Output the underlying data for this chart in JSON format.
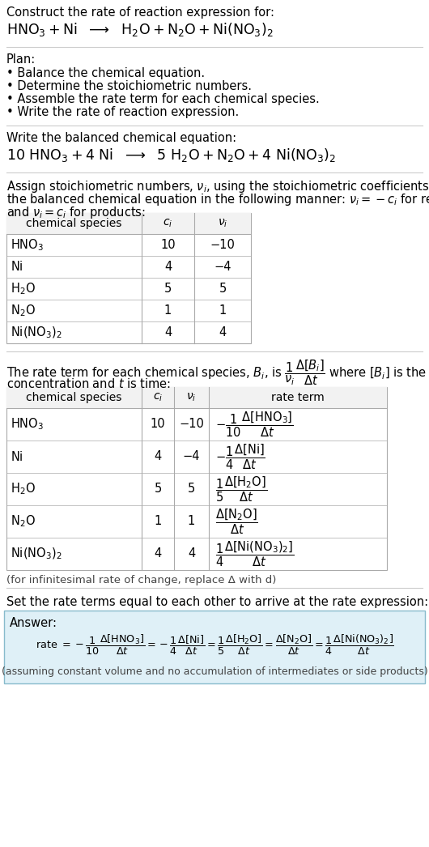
{
  "bg_color": "#ffffff",
  "light_blue_bg": "#dff0f7",
  "table_border": "#aaaaaa",
  "title_text": "Construct the rate of reaction expression for:",
  "plan_items": [
    "• Balance the chemical equation.",
    "• Determine the stoichiometric numbers.",
    "• Assemble the rate term for each chemical species.",
    "• Write the rate of reaction expression."
  ],
  "table1_rows": [
    [
      "HNO_3",
      "10",
      "−10"
    ],
    [
      "Ni",
      "4",
      "−4"
    ],
    [
      "H_2O",
      "5",
      "5"
    ],
    [
      "N_2O",
      "1",
      "1"
    ],
    [
      "Ni(NO_3)_2",
      "4",
      "4"
    ]
  ],
  "table2_rows": [
    [
      "HNO_3",
      "10",
      "−10"
    ],
    [
      "Ni",
      "4",
      "−4"
    ],
    [
      "H_2O",
      "5",
      "5"
    ],
    [
      "N_2O",
      "1",
      "1"
    ],
    [
      "Ni(NO_3)_2",
      "4",
      "4"
    ]
  ],
  "infinitesimal_note": "(for infinitesimal rate of change, replace Δ with d)",
  "set_equal_text": "Set the rate terms equal to each other to arrive at the rate expression:",
  "answer_label": "Answer:",
  "answer_note": "(assuming constant volume and no accumulation of intermediates or side products)"
}
